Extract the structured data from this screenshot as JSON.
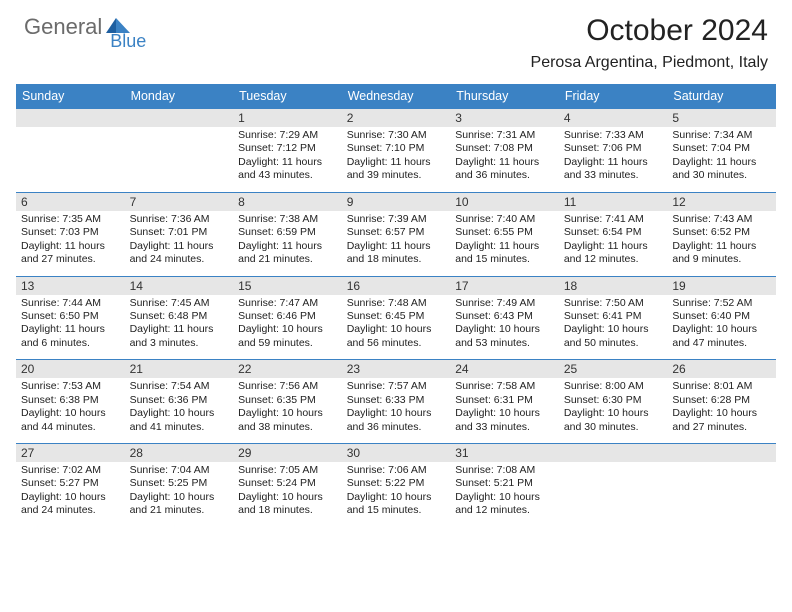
{
  "logo": {
    "text1": "General",
    "text2": "Blue"
  },
  "title": "October 2024",
  "location": "Perosa Argentina, Piedmont, Italy",
  "colors": {
    "header_bg": "#3b82c4",
    "daynum_bg": "#e6e6e6",
    "rule": "#3b82c4",
    "logo_gray": "#6b6b6b",
    "logo_blue": "#3b82c4"
  },
  "days_of_week": [
    "Sunday",
    "Monday",
    "Tuesday",
    "Wednesday",
    "Thursday",
    "Friday",
    "Saturday"
  ],
  "weeks": [
    [
      null,
      null,
      {
        "n": "1",
        "sunrise": "7:29 AM",
        "sunset": "7:12 PM",
        "dayh": "11",
        "daym": "43"
      },
      {
        "n": "2",
        "sunrise": "7:30 AM",
        "sunset": "7:10 PM",
        "dayh": "11",
        "daym": "39"
      },
      {
        "n": "3",
        "sunrise": "7:31 AM",
        "sunset": "7:08 PM",
        "dayh": "11",
        "daym": "36"
      },
      {
        "n": "4",
        "sunrise": "7:33 AM",
        "sunset": "7:06 PM",
        "dayh": "11",
        "daym": "33"
      },
      {
        "n": "5",
        "sunrise": "7:34 AM",
        "sunset": "7:04 PM",
        "dayh": "11",
        "daym": "30"
      }
    ],
    [
      {
        "n": "6",
        "sunrise": "7:35 AM",
        "sunset": "7:03 PM",
        "dayh": "11",
        "daym": "27"
      },
      {
        "n": "7",
        "sunrise": "7:36 AM",
        "sunset": "7:01 PM",
        "dayh": "11",
        "daym": "24"
      },
      {
        "n": "8",
        "sunrise": "7:38 AM",
        "sunset": "6:59 PM",
        "dayh": "11",
        "daym": "21"
      },
      {
        "n": "9",
        "sunrise": "7:39 AM",
        "sunset": "6:57 PM",
        "dayh": "11",
        "daym": "18"
      },
      {
        "n": "10",
        "sunrise": "7:40 AM",
        "sunset": "6:55 PM",
        "dayh": "11",
        "daym": "15"
      },
      {
        "n": "11",
        "sunrise": "7:41 AM",
        "sunset": "6:54 PM",
        "dayh": "11",
        "daym": "12"
      },
      {
        "n": "12",
        "sunrise": "7:43 AM",
        "sunset": "6:52 PM",
        "dayh": "11",
        "daym": "9"
      }
    ],
    [
      {
        "n": "13",
        "sunrise": "7:44 AM",
        "sunset": "6:50 PM",
        "dayh": "11",
        "daym": "6"
      },
      {
        "n": "14",
        "sunrise": "7:45 AM",
        "sunset": "6:48 PM",
        "dayh": "11",
        "daym": "3"
      },
      {
        "n": "15",
        "sunrise": "7:47 AM",
        "sunset": "6:46 PM",
        "dayh": "10",
        "daym": "59"
      },
      {
        "n": "16",
        "sunrise": "7:48 AM",
        "sunset": "6:45 PM",
        "dayh": "10",
        "daym": "56"
      },
      {
        "n": "17",
        "sunrise": "7:49 AM",
        "sunset": "6:43 PM",
        "dayh": "10",
        "daym": "53"
      },
      {
        "n": "18",
        "sunrise": "7:50 AM",
        "sunset": "6:41 PM",
        "dayh": "10",
        "daym": "50"
      },
      {
        "n": "19",
        "sunrise": "7:52 AM",
        "sunset": "6:40 PM",
        "dayh": "10",
        "daym": "47"
      }
    ],
    [
      {
        "n": "20",
        "sunrise": "7:53 AM",
        "sunset": "6:38 PM",
        "dayh": "10",
        "daym": "44"
      },
      {
        "n": "21",
        "sunrise": "7:54 AM",
        "sunset": "6:36 PM",
        "dayh": "10",
        "daym": "41"
      },
      {
        "n": "22",
        "sunrise": "7:56 AM",
        "sunset": "6:35 PM",
        "dayh": "10",
        "daym": "38"
      },
      {
        "n": "23",
        "sunrise": "7:57 AM",
        "sunset": "6:33 PM",
        "dayh": "10",
        "daym": "36"
      },
      {
        "n": "24",
        "sunrise": "7:58 AM",
        "sunset": "6:31 PM",
        "dayh": "10",
        "daym": "33"
      },
      {
        "n": "25",
        "sunrise": "8:00 AM",
        "sunset": "6:30 PM",
        "dayh": "10",
        "daym": "30"
      },
      {
        "n": "26",
        "sunrise": "8:01 AM",
        "sunset": "6:28 PM",
        "dayh": "10",
        "daym": "27"
      }
    ],
    [
      {
        "n": "27",
        "sunrise": "7:02 AM",
        "sunset": "5:27 PM",
        "dayh": "10",
        "daym": "24"
      },
      {
        "n": "28",
        "sunrise": "7:04 AM",
        "sunset": "5:25 PM",
        "dayh": "10",
        "daym": "21"
      },
      {
        "n": "29",
        "sunrise": "7:05 AM",
        "sunset": "5:24 PM",
        "dayh": "10",
        "daym": "18"
      },
      {
        "n": "30",
        "sunrise": "7:06 AM",
        "sunset": "5:22 PM",
        "dayh": "10",
        "daym": "15"
      },
      {
        "n": "31",
        "sunrise": "7:08 AM",
        "sunset": "5:21 PM",
        "dayh": "10",
        "daym": "12"
      },
      null,
      null
    ]
  ]
}
